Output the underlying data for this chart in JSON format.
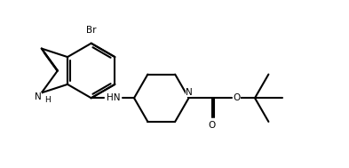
{
  "bg_color": "#ffffff",
  "line_color": "#000000",
  "bond_lw": 1.5,
  "figsize": [
    3.93,
    1.89
  ],
  "dpi": 100,
  "xlim": [
    0,
    10
  ],
  "ylim": [
    0,
    5
  ]
}
